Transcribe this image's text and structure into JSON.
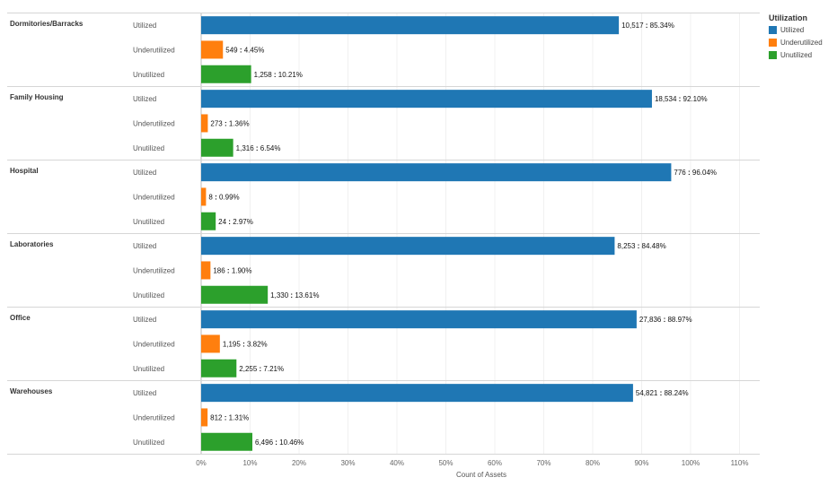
{
  "chart_data": {
    "type": "bar",
    "orientation": "horizontal",
    "xlabel": "Count of Assets",
    "xlim": [
      0,
      110
    ],
    "x_ticks": [
      "0%",
      "10%",
      "20%",
      "30%",
      "40%",
      "50%",
      "60%",
      "70%",
      "80%",
      "90%",
      "100%",
      "110%"
    ],
    "legend": {
      "title": "Utilization",
      "placement": "top-right",
      "items": [
        {
          "label": "Utilized",
          "color": "#1f77b4"
        },
        {
          "label": "Underutilized",
          "color": "#ff7f0e"
        },
        {
          "label": "Unutilized",
          "color": "#2ca02c"
        }
      ]
    },
    "groups": [
      {
        "name": "Dormitories/Barracks",
        "bars": [
          {
            "category": "Utilized",
            "count": "10,517",
            "percent": 85.34,
            "label": "85.34%"
          },
          {
            "category": "Underutilized",
            "count": "549",
            "percent": 4.45,
            "label": "4.45%"
          },
          {
            "category": "Unutilized",
            "count": "1,258",
            "percent": 10.21,
            "label": "10.21%"
          }
        ]
      },
      {
        "name": "Family Housing",
        "bars": [
          {
            "category": "Utilized",
            "count": "18,534",
            "percent": 92.1,
            "label": "92.10%"
          },
          {
            "category": "Underutilized",
            "count": "273",
            "percent": 1.36,
            "label": "1.36%"
          },
          {
            "category": "Unutilized",
            "count": "1,316",
            "percent": 6.54,
            "label": "6.54%"
          }
        ]
      },
      {
        "name": "Hospital",
        "bars": [
          {
            "category": "Utilized",
            "count": "776",
            "percent": 96.04,
            "label": "96.04%"
          },
          {
            "category": "Underutilized",
            "count": "8",
            "percent": 0.99,
            "label": "0.99%"
          },
          {
            "category": "Unutilized",
            "count": "24",
            "percent": 2.97,
            "label": "2.97%"
          }
        ]
      },
      {
        "name": "Laboratories",
        "bars": [
          {
            "category": "Utilized",
            "count": "8,253",
            "percent": 84.48,
            "label": "84.48%"
          },
          {
            "category": "Underutilized",
            "count": "186",
            "percent": 1.9,
            "label": "1.90%"
          },
          {
            "category": "Unutilized",
            "count": "1,330",
            "percent": 13.61,
            "label": "13.61%"
          }
        ]
      },
      {
        "name": "Office",
        "bars": [
          {
            "category": "Utilized",
            "count": "27,836",
            "percent": 88.97,
            "label": "88.97%"
          },
          {
            "category": "Underutilized",
            "count": "1,195",
            "percent": 3.82,
            "label": "3.82%"
          },
          {
            "category": "Unutilized",
            "count": "2,255",
            "percent": 7.21,
            "label": "7.21%"
          }
        ]
      },
      {
        "name": "Warehouses",
        "bars": [
          {
            "category": "Utilized",
            "count": "54,821",
            "percent": 88.24,
            "label": "88.24%"
          },
          {
            "category": "Underutilized",
            "count": "812",
            "percent": 1.31,
            "label": "1.31%"
          },
          {
            "category": "Unutilized",
            "count": "6,496",
            "percent": 10.46,
            "label": "10.46%"
          }
        ]
      }
    ]
  }
}
